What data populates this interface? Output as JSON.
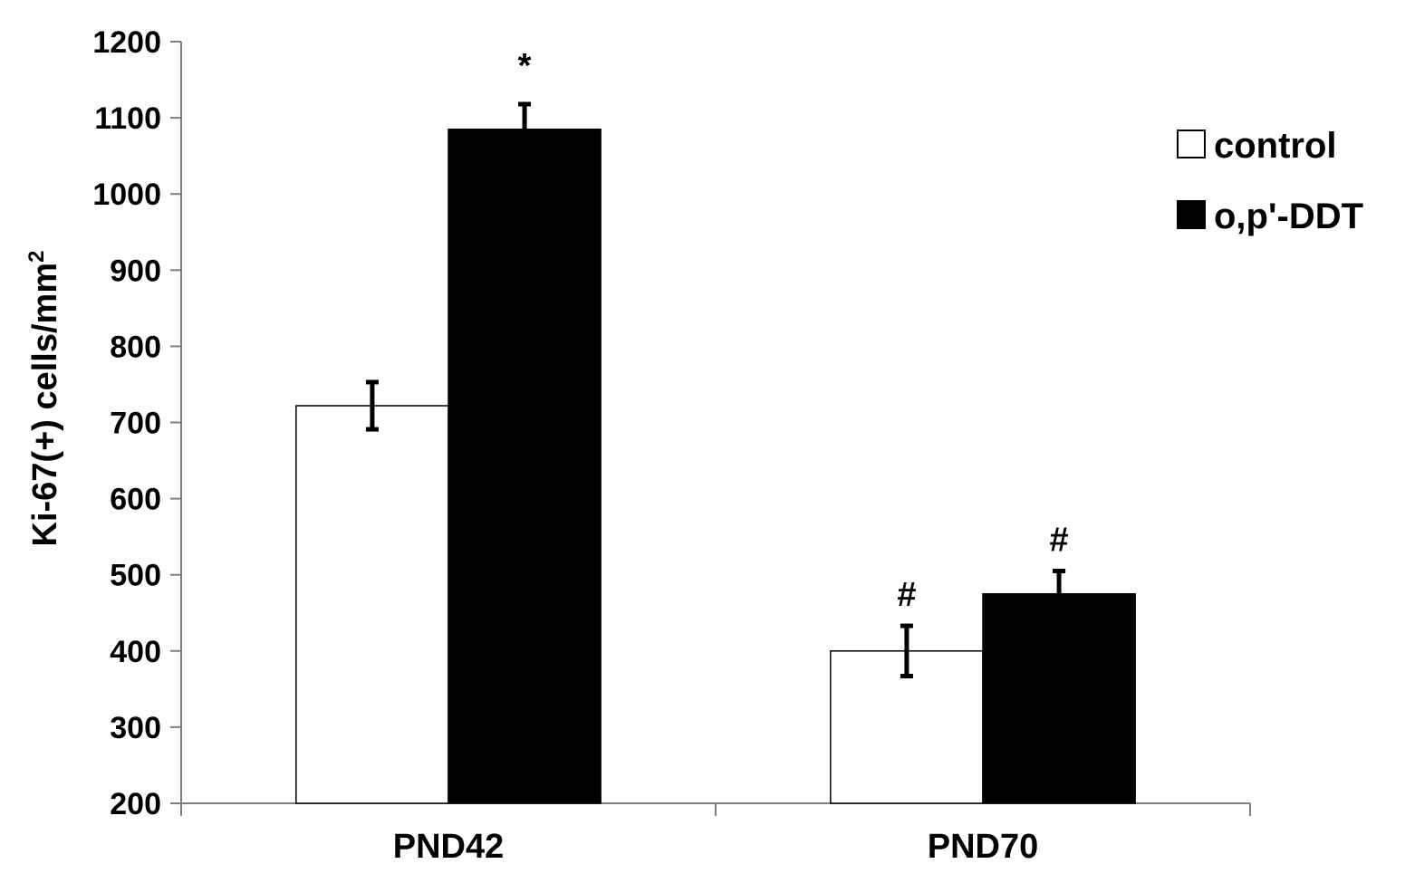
{
  "chart_data": {
    "type": "bar",
    "categories": [
      "PND42",
      "PND70"
    ],
    "series": [
      {
        "name": "control",
        "color": "#ffffff",
        "values": [
          722,
          400
        ],
        "errors": [
          31,
          33
        ]
      },
      {
        "name": "o,p'-DDT",
        "color": "#000000",
        "values": [
          1085,
          475
        ],
        "errors": [
          33,
          30
        ]
      }
    ],
    "annotations": [
      {
        "category": 0,
        "series": 1,
        "text": "*"
      },
      {
        "category": 1,
        "series": 0,
        "text": "#"
      },
      {
        "category": 1,
        "series": 1,
        "text": "#"
      }
    ],
    "ylabel": "Ki-67(+) cells/mm",
    "ylabel_superscript": "2",
    "xlabel": "",
    "title": "",
    "ylim": [
      200,
      1200
    ],
    "yticks": [
      200,
      300,
      400,
      500,
      600,
      700,
      800,
      900,
      1000,
      1100,
      1200
    ],
    "grid": false,
    "legend_position": "top-right"
  }
}
